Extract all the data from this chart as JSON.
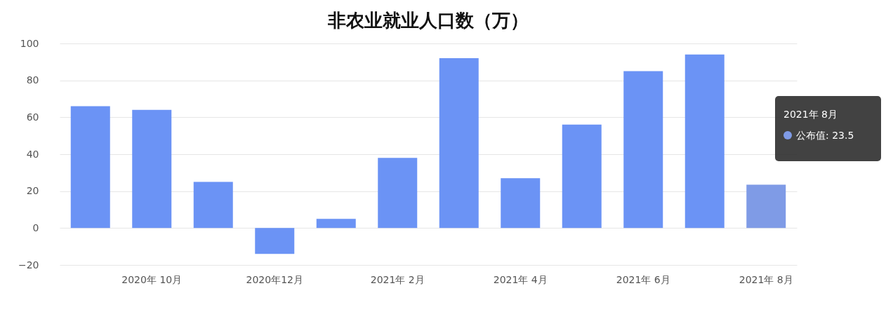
{
  "chart_data": {
    "type": "bar",
    "title": "非农业就业人口数（万）",
    "categories": [
      null,
      "2020年 10月",
      null,
      "2020年12月",
      null,
      "2021年 2月",
      null,
      "2021年 4月",
      null,
      "2021年 6月",
      null,
      "2021年 8月"
    ],
    "values": [
      66,
      64,
      25,
      -14,
      5,
      38,
      92,
      27,
      56,
      85,
      94,
      23.5
    ],
    "colors": [
      "#6b93f5",
      "#6b93f5",
      "#6b93f5",
      "#6b93f5",
      "#6b93f5",
      "#6b93f5",
      "#6b93f5",
      "#6b93f5",
      "#6b93f5",
      "#6b93f5",
      "#6b93f5",
      "#7f9be6"
    ],
    "ylim": [
      -20,
      100
    ],
    "yticks": [
      -20,
      0,
      20,
      40,
      60,
      80,
      100
    ],
    "grid": "y",
    "annotations": [
      "2021年 8月",
      "公布值: 23.5"
    ]
  }
}
